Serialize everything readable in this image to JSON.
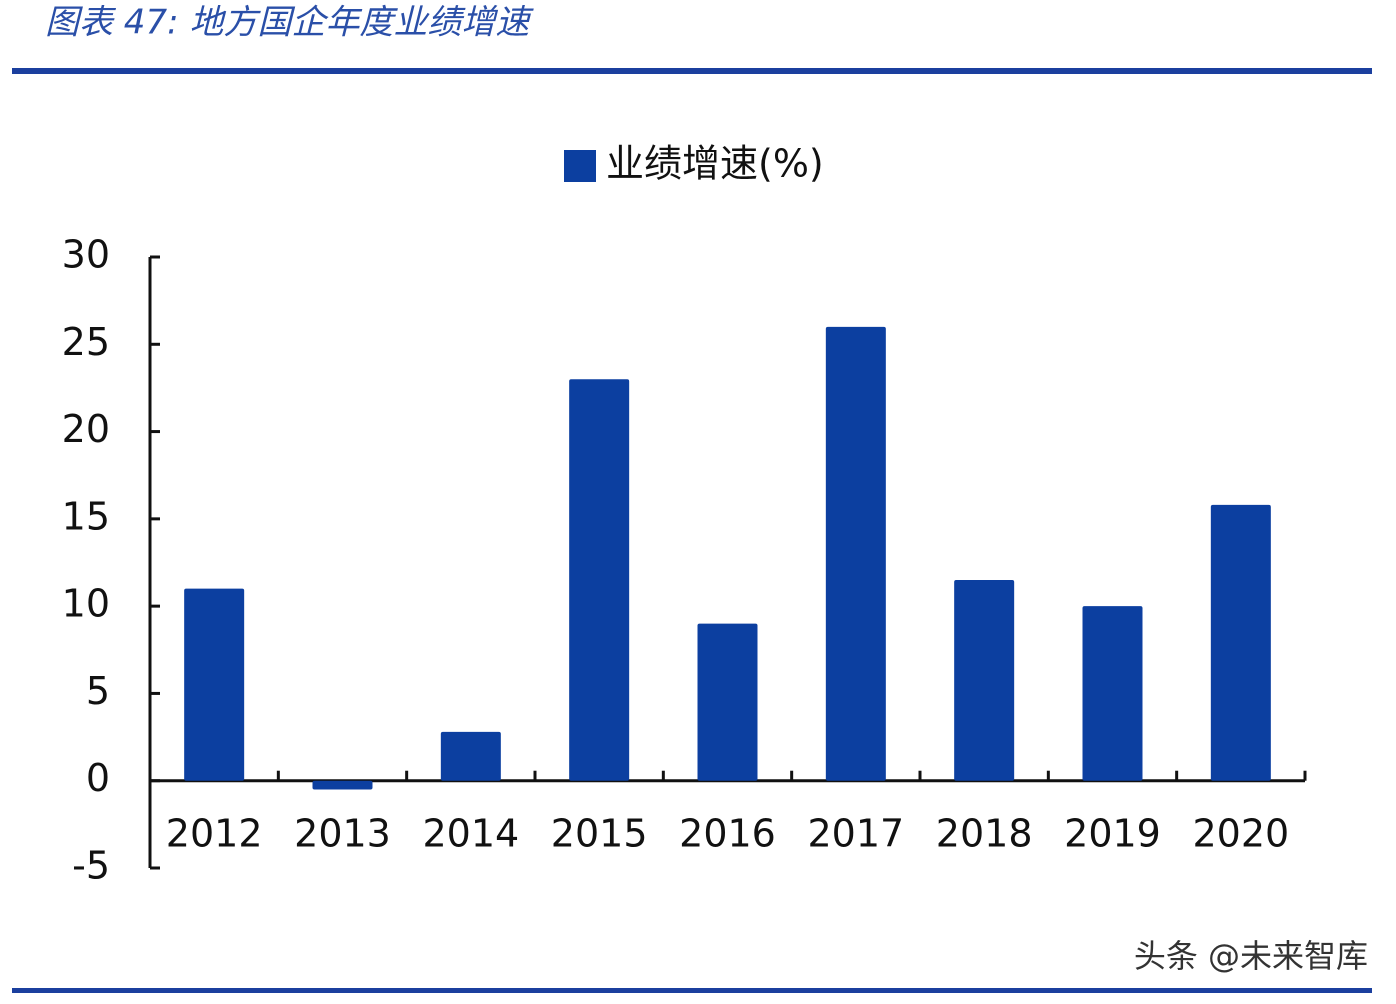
{
  "chart_data": {
    "type": "bar",
    "title": "图表 47: 地方国企年度业绩增速",
    "categories": [
      "2012",
      "2013",
      "2014",
      "2015",
      "2016",
      "2017",
      "2018",
      "2019",
      "2020"
    ],
    "series": [
      {
        "name": "业绩增速(%)",
        "color": "#0c3fa0",
        "values": [
          11,
          -0.5,
          2.8,
          23,
          9,
          26,
          11.5,
          10,
          15.8
        ]
      }
    ],
    "ylim": [
      -5,
      30
    ],
    "yticks": [
      -5,
      0,
      5,
      10,
      15,
      20,
      25,
      30
    ],
    "grid": false,
    "legend": "top",
    "watermark": "头条 @未来智库"
  }
}
